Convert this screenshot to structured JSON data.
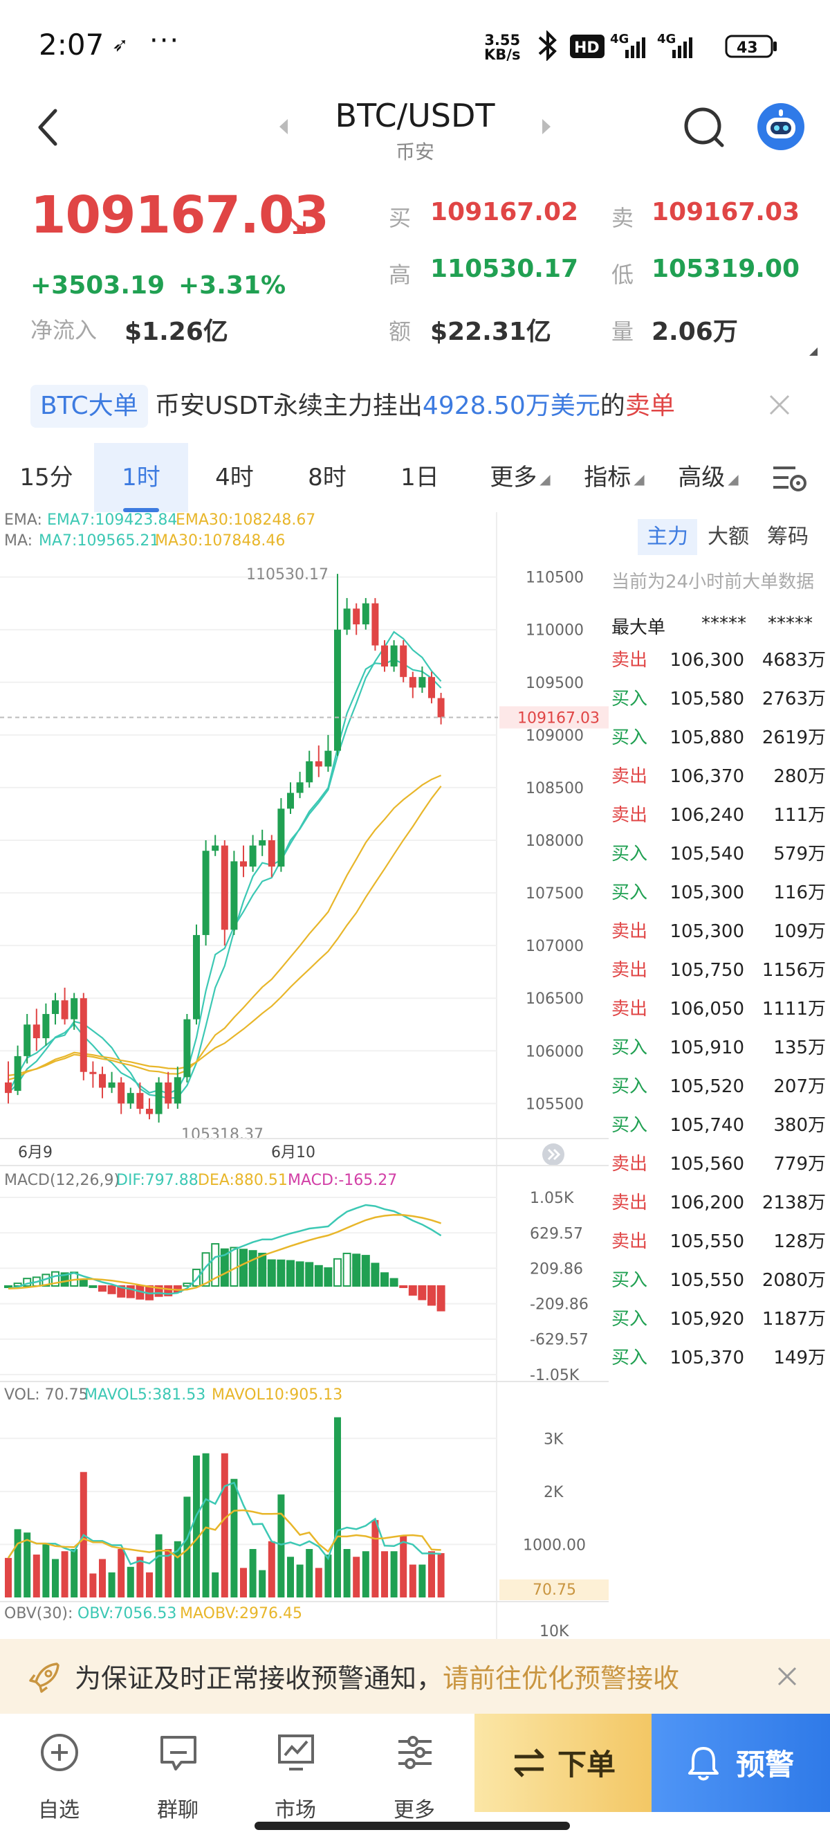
{
  "status_bar": {
    "time": "2:07",
    "dots": "···",
    "net_speed_value": "3.55",
    "net_speed_unit": "KB/s",
    "hd_label": "HD",
    "net_1": "4G",
    "net_2": "4G",
    "battery": "43"
  },
  "header": {
    "pair": "BTC/USDT",
    "exchange": "币安"
  },
  "price": {
    "last": "109167.03",
    "change": "+3503.19",
    "change_pct": "+3.31%",
    "net_inflow_label": "净流入",
    "net_inflow": "$1.26亿"
  },
  "stats": {
    "buy_label": "买",
    "buy": "109167.02",
    "sell_label": "卖",
    "sell": "109167.03",
    "high_label": "高",
    "high": "110530.17",
    "low_label": "低",
    "low": "105319.00",
    "amount_label": "额",
    "amount": "$22.31亿",
    "volume_label": "量",
    "volume": "2.06万"
  },
  "big_order_banner": {
    "badge": "BTC大单",
    "text_prefix": "币安USDT永续主力挂出",
    "amount": "4928.50万美元",
    "text_mid": "的",
    "order_type": "卖单"
  },
  "tabs": [
    {
      "label": "15分"
    },
    {
      "label": "1时",
      "active": true
    },
    {
      "label": "4时"
    },
    {
      "label": "8时"
    },
    {
      "label": "1日"
    },
    {
      "label": "更多"
    },
    {
      "label": "指标"
    },
    {
      "label": "高级"
    }
  ],
  "indicators": {
    "ema_label": "EMA:",
    "ema7": "EMA7:109423.84",
    "ema30": "EMA30:108248.67",
    "ma_label": "MA:",
    "ma7": "MA7:109565.21",
    "ma30": "MA30:107848.46",
    "macd_label": "MACD(12,26,9)",
    "dif": "DIF:797.88",
    "dea": "DEA:880.51",
    "macd": "MACD:-165.27",
    "vol_label": "VOL: 70.75",
    "mavol5": "MAVOL5:381.53",
    "mavol10": "MAVOL10:905.13",
    "obv_label": "OBV(30):",
    "obv": "OBV:7056.53",
    "maobv": "MAOBV:2976.45"
  },
  "chart_data": {
    "type": "candlestick",
    "price_axis": [
      "110500",
      "110000",
      "109500",
      "109000",
      "108500",
      "108000",
      "107500",
      "107000",
      "106500",
      "106000",
      "105500"
    ],
    "ylim": [
      105200,
      110800
    ],
    "last_price_tag": "109167.03",
    "high_marker": "110530.17",
    "low_marker": "105318.37",
    "date_labels": [
      "6月9",
      "6月10"
    ],
    "macd_axis": [
      "1.05K",
      "629.57",
      "209.86",
      "-209.86",
      "-629.57",
      "-1.05K"
    ],
    "vol_axis": [
      "3K",
      "2K",
      "1000.00"
    ],
    "vol_tag": "70.75",
    "obv_axis": [
      "10K"
    ],
    "candles": [
      [
        105700,
        105600,
        105900,
        105500
      ],
      [
        105620,
        105950,
        106050,
        105580
      ],
      [
        105950,
        106250,
        106350,
        105880
      ],
      [
        106250,
        106120,
        106400,
        106000
      ],
      [
        106120,
        106350,
        106450,
        106050
      ],
      [
        106350,
        106480,
        106550,
        106250
      ],
      [
        106480,
        106300,
        106600,
        106250
      ],
      [
        106300,
        106500,
        106550,
        106200
      ],
      [
        106500,
        105800,
        106550,
        105720
      ],
      [
        105800,
        105780,
        105900,
        105650
      ],
      [
        105780,
        105650,
        105850,
        105550
      ],
      [
        105650,
        105700,
        105800,
        105600
      ],
      [
        105700,
        105500,
        105750,
        105400
      ],
      [
        105500,
        105600,
        105650,
        105450
      ],
      [
        105600,
        105450,
        105700,
        105400
      ],
      [
        105450,
        105400,
        105550,
        105350
      ],
      [
        105400,
        105700,
        105750,
        105319
      ],
      [
        105700,
        105500,
        105800,
        105450
      ],
      [
        105500,
        105750,
        105850,
        105450
      ],
      [
        105750,
        106300,
        106350,
        105700
      ],
      [
        106300,
        107100,
        107200,
        106250
      ],
      [
        107100,
        107900,
        108000,
        107000
      ],
      [
        107900,
        107950,
        108050,
        107850
      ],
      [
        107950,
        107150,
        108000,
        107000
      ],
      [
        107150,
        107800,
        107900,
        107100
      ],
      [
        107800,
        107750,
        107950,
        107650
      ],
      [
        107750,
        107950,
        108050,
        107700
      ],
      [
        107950,
        108000,
        108100,
        107850
      ],
      [
        108000,
        107750,
        108050,
        107650
      ],
      [
        107750,
        108300,
        108400,
        107700
      ],
      [
        108300,
        108450,
        108550,
        108250
      ],
      [
        108450,
        108550,
        108650,
        108400
      ],
      [
        108550,
        108750,
        108850,
        108500
      ],
      [
        108750,
        108700,
        108900,
        108600
      ],
      [
        108700,
        108850,
        109000,
        108650
      ],
      [
        108850,
        110000,
        110530,
        108800
      ],
      [
        110000,
        110200,
        110300,
        109950
      ],
      [
        110200,
        110050,
        110250,
        109950
      ],
      [
        110050,
        110250,
        110300,
        110000
      ],
      [
        110250,
        109850,
        110300,
        109800
      ],
      [
        109850,
        109650,
        109900,
        109600
      ],
      [
        109650,
        109850,
        109900,
        109600
      ],
      [
        109850,
        109550,
        109900,
        109500
      ],
      [
        109550,
        109450,
        109600,
        109350
      ],
      [
        109450,
        109550,
        109650,
        109400
      ],
      [
        109550,
        109350,
        109600,
        109300
      ],
      [
        109350,
        109167,
        109400,
        109100
      ]
    ]
  },
  "side_panel": {
    "tabs": [
      "主力",
      "大额",
      "筹码"
    ],
    "note": "当前为24小时前大单数据",
    "header_label": "最大单",
    "header_price": "*****",
    "header_amount": "*****",
    "rows": [
      {
        "side": "卖出",
        "price": "106,300",
        "amount": "4683万"
      },
      {
        "side": "买入",
        "price": "105,580",
        "amount": "2763万"
      },
      {
        "side": "买入",
        "price": "105,880",
        "amount": "2619万"
      },
      {
        "side": "卖出",
        "price": "106,370",
        "amount": "280万"
      },
      {
        "side": "卖出",
        "price": "106,240",
        "amount": "111万"
      },
      {
        "side": "买入",
        "price": "105,540",
        "amount": "579万"
      },
      {
        "side": "买入",
        "price": "105,300",
        "amount": "116万"
      },
      {
        "side": "卖出",
        "price": "105,300",
        "amount": "109万"
      },
      {
        "side": "卖出",
        "price": "105,750",
        "amount": "1156万"
      },
      {
        "side": "卖出",
        "price": "106,050",
        "amount": "1111万"
      },
      {
        "side": "买入",
        "price": "105,910",
        "amount": "135万"
      },
      {
        "side": "买入",
        "price": "105,520",
        "amount": "207万"
      },
      {
        "side": "买入",
        "price": "105,740",
        "amount": "380万"
      },
      {
        "side": "卖出",
        "price": "105,560",
        "amount": "779万"
      },
      {
        "side": "卖出",
        "price": "106,200",
        "amount": "2138万"
      },
      {
        "side": "卖出",
        "price": "105,550",
        "amount": "128万"
      },
      {
        "side": "买入",
        "price": "105,550",
        "amount": "2080万"
      },
      {
        "side": "买入",
        "price": "105,920",
        "amount": "1187万"
      },
      {
        "side": "买入",
        "price": "105,370",
        "amount": "149万"
      }
    ]
  },
  "notice": {
    "text": "为保证及时正常接收预警通知，",
    "link": "请前往优化预警接收"
  },
  "bottom_nav": {
    "items": [
      {
        "label": "自选",
        "icon": "plus-circle-icon"
      },
      {
        "label": "群聊",
        "icon": "chat-icon"
      },
      {
        "label": "市场",
        "icon": "market-icon"
      },
      {
        "label": "更多",
        "icon": "more-icon"
      }
    ],
    "order_label": "下单",
    "alert_label": "预警"
  },
  "colors": {
    "up": "#20a052",
    "down": "#e04545",
    "accent": "#3d7be0",
    "ema7": "#3cc8b4",
    "ema30": "#e8b62a"
  }
}
